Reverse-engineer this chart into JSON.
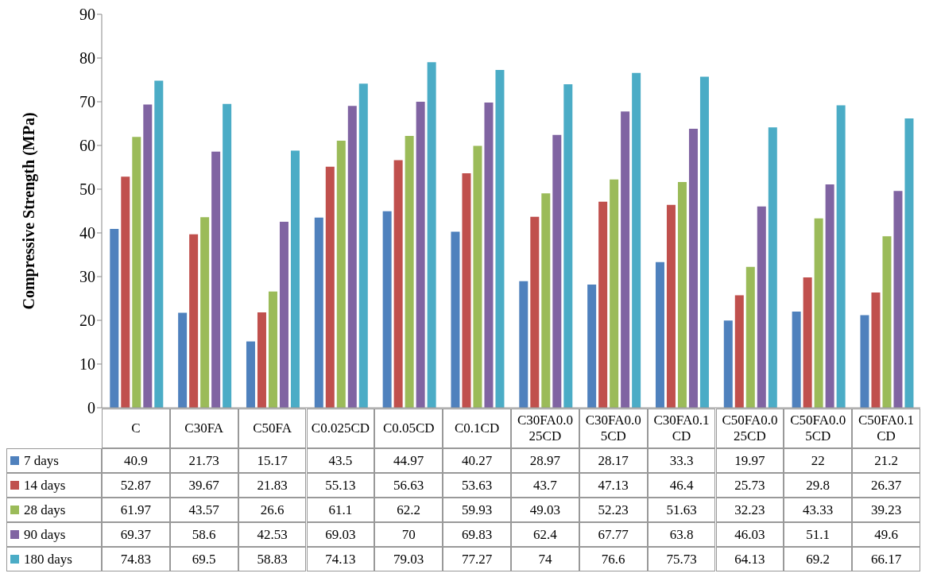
{
  "chart_data": {
    "type": "bar",
    "ylabel": "Compressive Strength (MPa)",
    "categories": [
      "C",
      "C30FA",
      "C50FA",
      "C0.025CD",
      "C0.05CD",
      "C0.1CD",
      "C30FA0.025CD",
      "C30FA0.05CD",
      "C30FA0.1CD",
      "C50FA0.025CD",
      "C50FA0.05CD",
      "C50FA0.1CD"
    ],
    "series": [
      {
        "name": "7 days",
        "color": "#4f81bd",
        "values": [
          40.9,
          21.73,
          15.17,
          43.5,
          44.97,
          40.27,
          28.97,
          28.17,
          33.3,
          19.97,
          22,
          21.2
        ]
      },
      {
        "name": "14 days",
        "color": "#c0504d",
        "values": [
          52.87,
          39.67,
          21.83,
          55.13,
          56.63,
          53.63,
          43.7,
          47.13,
          46.4,
          25.73,
          29.8,
          26.37
        ]
      },
      {
        "name": "28 days",
        "color": "#9bbb59",
        "values": [
          61.97,
          43.57,
          26.6,
          61.1,
          62.2,
          59.93,
          49.03,
          52.23,
          51.63,
          32.23,
          43.33,
          39.23
        ]
      },
      {
        "name": "90 days",
        "color": "#8064a2",
        "values": [
          69.37,
          58.6,
          42.53,
          69.03,
          70,
          69.83,
          62.4,
          67.77,
          63.8,
          46.03,
          51.1,
          49.6
        ]
      },
      {
        "name": "180 days",
        "color": "#4bacc6",
        "values": [
          74.83,
          69.5,
          58.83,
          74.13,
          79.03,
          77.27,
          74,
          76.6,
          75.73,
          64.13,
          69.2,
          66.17
        ]
      }
    ],
    "ylim": [
      0,
      90
    ],
    "yticks": [
      0,
      10,
      20,
      30,
      40,
      50,
      60,
      70,
      80,
      90
    ],
    "grid": false,
    "data_labels": true,
    "legend": "bottom left"
  }
}
